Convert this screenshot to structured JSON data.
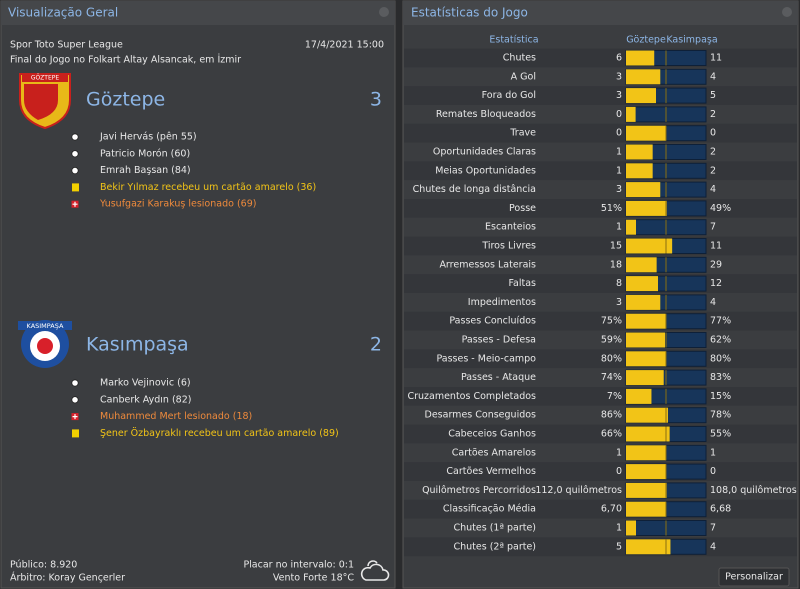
{
  "left": {
    "title": "Visualização Geral",
    "competition": "Spor Toto Super League",
    "datetime": "17/4/2021 15:00",
    "venue": "Final do Jogo no Folkart Altay Alsancak, em İzmir",
    "home": {
      "badge": "GÖZTEPE",
      "name": "Göztepe",
      "score": "3",
      "events": [
        {
          "icon": "goal",
          "text": "Javi Hervás (pên 55)"
        },
        {
          "icon": "goal",
          "text": "Patricio Morón (60)"
        },
        {
          "icon": "goal",
          "text": "Emrah Başsan (84)"
        },
        {
          "icon": "yellow",
          "text": "Bekir Yılmaz recebeu um cartão amarelo (36)"
        },
        {
          "icon": "injury",
          "text": "Yusufgazi Karakuş lesionado (69)"
        }
      ]
    },
    "away": {
      "badge": "KASIMPAŞA",
      "name": "Kasımpaşa",
      "score": "2",
      "events": [
        {
          "icon": "goal",
          "text": "Marko Vejinovic (6)"
        },
        {
          "icon": "goal",
          "text": "Canberk Aydın (82)"
        },
        {
          "icon": "injury",
          "text": "Muhammed Mert lesionado (18)"
        },
        {
          "icon": "yellow",
          "text": "Şener Özbayraklı recebeu um cartão amarelo (89)"
        }
      ]
    },
    "footer": {
      "attendance": "Público: 8.920",
      "referee": "Árbitro: Koray Gençerler",
      "halftime": "Placar no intervalo: 0:1",
      "weather": "Vento Forte 18°C"
    }
  },
  "right": {
    "title": "Estatísticas do Jogo",
    "header": {
      "stat": "Estatística",
      "home": "Göztepe",
      "away": "Kasimpaşa"
    },
    "rows": [
      {
        "label": "Chutes",
        "home": "6",
        "away": "11"
      },
      {
        "label": "A Gol",
        "home": "3",
        "away": "4"
      },
      {
        "label": "Fora do Gol",
        "home": "3",
        "away": "5"
      },
      {
        "label": "Remates Bloqueados",
        "home": "0",
        "away": "2"
      },
      {
        "label": "Trave",
        "home": "0",
        "away": "0"
      },
      {
        "label": "Oportunidades Claras",
        "home": "1",
        "away": "2"
      },
      {
        "label": "Meias Oportunidades",
        "home": "1",
        "away": "2"
      },
      {
        "label": "Chutes de longa distância",
        "home": "3",
        "away": "4"
      },
      {
        "label": "Posse",
        "home": "51%",
        "away": "49%"
      },
      {
        "label": "Escanteios",
        "home": "1",
        "away": "7"
      },
      {
        "label": "Tiros Livres",
        "home": "15",
        "away": "11"
      },
      {
        "label": "Arremessos Laterais",
        "home": "18",
        "away": "29"
      },
      {
        "label": "Faltas",
        "home": "8",
        "away": "12"
      },
      {
        "label": "Impedimentos",
        "home": "3",
        "away": "4"
      },
      {
        "label": "Passes Concluídos",
        "home": "75%",
        "away": "77%"
      },
      {
        "label": "Passes - Defesa",
        "home": "59%",
        "away": "62%"
      },
      {
        "label": "Passes - Meio-campo",
        "home": "80%",
        "away": "80%"
      },
      {
        "label": "Passes - Ataque",
        "home": "74%",
        "away": "83%"
      },
      {
        "label": "Cruzamentos Completados",
        "home": "7%",
        "away": "15%"
      },
      {
        "label": "Desarmes Conseguidos",
        "home": "86%",
        "away": "78%"
      },
      {
        "label": "Cabeceios Ganhos",
        "home": "66%",
        "away": "55%"
      },
      {
        "label": "Cartões Amarelos",
        "home": "1",
        "away": "1"
      },
      {
        "label": "Cartões Vermelhos",
        "home": "0",
        "away": "0"
      },
      {
        "label": "Quilômetros Percorridos",
        "home": "112,0 quilômetros",
        "away": "108,0 quilômetros"
      },
      {
        "label": "Classificação Média",
        "home": "6,70",
        "away": "6,68"
      },
      {
        "label": "Chutes (1ª parte)",
        "home": "1",
        "away": "7"
      },
      {
        "label": "Chutes (2ª parte)",
        "home": "5",
        "away": "4"
      }
    ],
    "button": "Personalizar"
  }
}
